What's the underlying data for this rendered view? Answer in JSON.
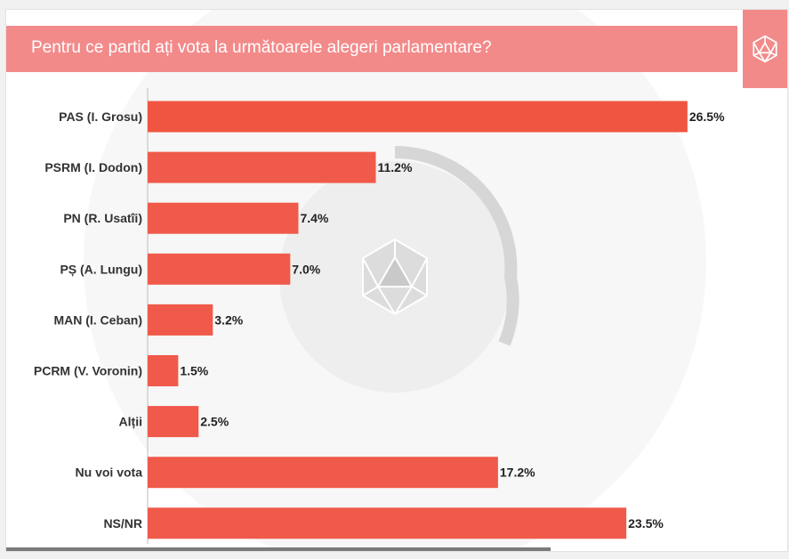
{
  "header": {
    "title": "Pentru ce partid ați vota la următoarele alegeri parlamentare?",
    "logo_icon": "d20-dice-icon"
  },
  "colors": {
    "accent": "#f38a8a",
    "bar": "#f05a4a",
    "bar_top": "#f05541"
  },
  "chart_data": {
    "type": "bar",
    "orientation": "horizontal",
    "title": "Pentru ce partid ați vota la următoarele alegeri parlamentare?",
    "categories": [
      "PAS (I. Grosu)",
      "PSRM (I. Dodon)",
      "PN (R. Usatîi)",
      "PȘ (A. Lungu)",
      "MAN (I. Ceban)",
      "PCRM (V. Voronin)",
      "Alții",
      "Nu voi vota",
      "NS/NR"
    ],
    "values": [
      26.5,
      11.2,
      7.4,
      7.0,
      3.2,
      1.5,
      2.5,
      17.2,
      23.5
    ],
    "value_labels": [
      "26.5%",
      "11.2%",
      "7.4%",
      "7.0%",
      "3.2%",
      "1.5%",
      "2.5%",
      "17.2%",
      "23.5%"
    ],
    "xlim": [
      0,
      28
    ],
    "grid": false,
    "legend": "none"
  }
}
